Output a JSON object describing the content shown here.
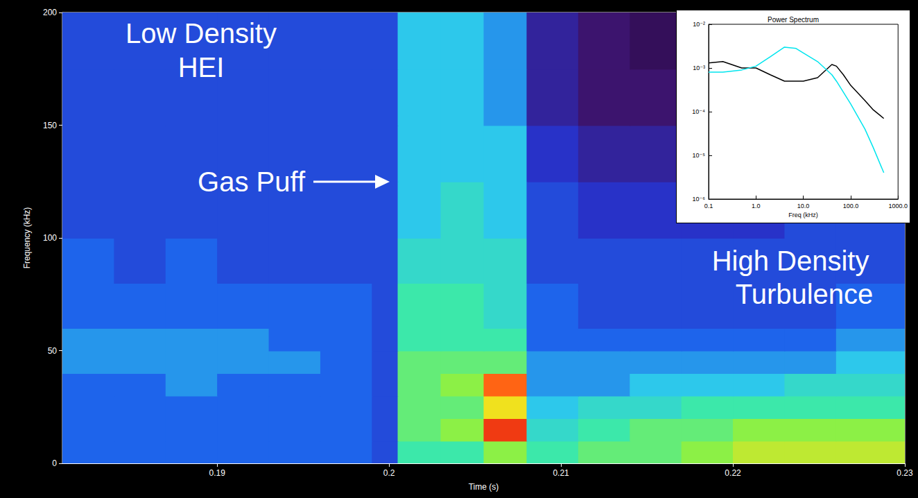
{
  "chart_data": [
    {
      "type": "heatmap",
      "x_label": "Time (s)",
      "y_label": "Frequency (kHz)",
      "xlim": [
        0.181,
        0.23
      ],
      "xticks": [
        0.19,
        0.2,
        0.21,
        0.22,
        0.23
      ],
      "ylim": [
        0,
        200
      ],
      "yticks": [
        0,
        50,
        100,
        150,
        200
      ],
      "grid": false,
      "x_bins": [
        0.181,
        0.184,
        0.187,
        0.19,
        0.193,
        0.196,
        0.199,
        0.2005,
        0.203,
        0.2055,
        0.208,
        0.211,
        0.214,
        0.217,
        0.22,
        0.223,
        0.226,
        0.23
      ],
      "y_bins": [
        0,
        10,
        20,
        30,
        40,
        50,
        60,
        80,
        100,
        125,
        150,
        175,
        200
      ],
      "zlim": [
        0,
        10
      ],
      "cells": [
        [
          4,
          4,
          4,
          4,
          4,
          4,
          3.5,
          6,
          6,
          7,
          6,
          6.5,
          6.5,
          7,
          7.5,
          7.5,
          7.5
        ],
        [
          4,
          4,
          4,
          4,
          4,
          4,
          3.5,
          6.5,
          7,
          9.5,
          5.5,
          6,
          6.5,
          6.5,
          7,
          7,
          7
        ],
        [
          4,
          4,
          4,
          4,
          4,
          4,
          3.5,
          6.5,
          6.5,
          8,
          5,
          5.5,
          5.5,
          6,
          6,
          6,
          6
        ],
        [
          4,
          4,
          4.5,
          4,
          4,
          4,
          3.5,
          6.5,
          7,
          9,
          4.5,
          4.5,
          5,
          5,
          5,
          5.5,
          5.5
        ],
        [
          4.5,
          4.5,
          4.5,
          4.5,
          4.5,
          4,
          3.5,
          6.5,
          6.5,
          6.5,
          4.5,
          4.5,
          4.5,
          4.5,
          4.5,
          4.5,
          5
        ],
        [
          4.5,
          4.5,
          4.5,
          4.5,
          4,
          4,
          3.5,
          6,
          6,
          6,
          4,
          4,
          4,
          4,
          4,
          4,
          4.5
        ],
        [
          4,
          4,
          4,
          4,
          4,
          4,
          3.5,
          6,
          6,
          5.5,
          4,
          3.5,
          3.5,
          3.5,
          3.5,
          3.5,
          4
        ],
        [
          4,
          3.5,
          4,
          3.5,
          3.5,
          3.5,
          3.5,
          5.5,
          5.5,
          5.5,
          3.5,
          3.5,
          3.5,
          3.5,
          3.5,
          3.5,
          3.5
        ],
        [
          3.5,
          3.5,
          3.5,
          3.5,
          3.5,
          3.5,
          3.5,
          5,
          5.5,
          5,
          3.5,
          3,
          3,
          3,
          3,
          3.5,
          3.5
        ],
        [
          3.5,
          3.5,
          3.5,
          3.5,
          3.5,
          3.5,
          3.5,
          5,
          5,
          5,
          3,
          2.5,
          2.5,
          2.5,
          2.5,
          3,
          3
        ],
        [
          3.5,
          3.5,
          3.5,
          3.5,
          3.5,
          3.5,
          3.5,
          5,
          5,
          4.5,
          2.5,
          2,
          2,
          2,
          2,
          2.5,
          3
        ],
        [
          3.5,
          3.5,
          3.5,
          3.5,
          3.5,
          3.5,
          3.5,
          5,
          5,
          4.5,
          2.5,
          2,
          1.5,
          1.5,
          2,
          2.5,
          3
        ]
      ],
      "annotations": [
        {
          "text": [
            "Low Density",
            "HEI"
          ]
        },
        {
          "text": [
            "Gas Puff"
          ]
        },
        {
          "text": [
            "High Density",
            "Turbulence"
          ]
        }
      ]
    },
    {
      "type": "line",
      "title": "Power Spectrum",
      "x_label": "Freq (kHz)",
      "log": true,
      "grid": false,
      "xlim": [
        0.1,
        1000
      ],
      "xticks": [
        0.1,
        {
          "value": 1,
          "label": "1.0"
        },
        {
          "value": 10,
          "label": "10.0"
        },
        {
          "value": 100,
          "label": "100.0"
        },
        {
          "value": 1000,
          "label": "1000.0"
        }
      ],
      "ylim": [
        1e-06,
        0.01
      ],
      "yticks": [
        {
          "value": 1e-06,
          "label": "10⁻⁶"
        },
        {
          "value": 1e-05,
          "label": "10⁻⁵"
        },
        {
          "value": 0.0001,
          "label": "10⁻⁴"
        },
        {
          "value": 0.001,
          "label": "10⁻³"
        },
        {
          "value": 0.01,
          "label": "10⁻²"
        }
      ],
      "x": [
        0.1,
        0.2,
        0.5,
        1,
        2,
        4,
        7,
        10,
        20,
        40,
        50,
        70,
        100,
        200,
        300,
        500
      ],
      "series": [
        {
          "color": "#000000",
          "values": [
            0.0013,
            0.0014,
            0.001,
            0.001,
            0.0007,
            0.0005,
            0.0005,
            0.0005,
            0.0006,
            0.0012,
            0.0011,
            0.0007,
            0.0004,
            0.00018,
            0.00011,
            7e-05
          ]
        },
        {
          "color": "#00e5ee",
          "values": [
            0.0008,
            0.0008,
            0.0009,
            0.0011,
            0.0018,
            0.003,
            0.0028,
            0.0022,
            0.0014,
            0.0007,
            0.0005,
            0.00028,
            0.00015,
            4e-05,
            1.5e-05,
            4e-06
          ]
        }
      ]
    }
  ]
}
